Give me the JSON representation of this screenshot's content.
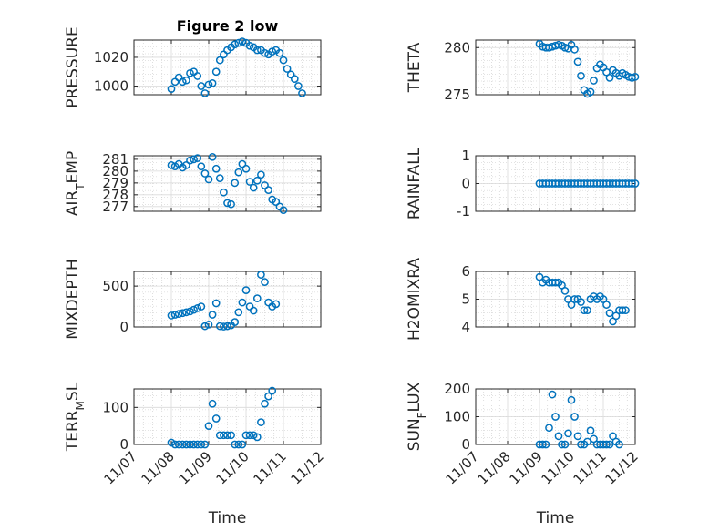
{
  "figure": {
    "title": "Figure 2 low",
    "xlabel": "Time"
  },
  "x_ticks": [
    "11/07",
    "11/08",
    "11/09",
    "11/10",
    "11/11",
    "11/12"
  ],
  "marker_color": "#0072BD",
  "chart_data": [
    {
      "type": "scatter",
      "title": "Figure 2 low",
      "ylabel": "PRESSURE",
      "ylim": [
        994,
        1032
      ],
      "yticks": [
        1000,
        1020
      ],
      "xlim": [
        0,
        5
      ],
      "x": [
        0.0,
        0.1,
        0.2,
        0.3,
        0.4,
        0.5,
        0.6,
        0.7,
        0.8,
        0.9,
        1.0,
        1.1,
        1.2,
        1.3,
        1.4,
        1.5,
        1.6,
        1.7,
        1.8,
        1.9,
        2.0,
        2.1,
        2.2,
        2.3,
        2.4,
        2.5,
        2.6,
        2.7,
        2.8,
        2.9,
        3.0,
        3.1,
        3.2,
        3.3,
        3.4,
        3.5,
        3.6,
        3.7,
        3.8,
        3.9,
        4.0,
        4.1,
        4.2,
        4.3,
        4.4,
        4.5,
        4.6,
        4.7,
        4.8,
        4.9,
        5.0
      ],
      "y": [
        null,
        null,
        null,
        null,
        null,
        null,
        null,
        null,
        null,
        null,
        998,
        1003,
        1006,
        1003,
        1004,
        1009,
        1010,
        1007,
        1000,
        995,
        1001,
        1002,
        1010,
        1018,
        1022,
        1025,
        1027,
        1029,
        1030,
        1031,
        1030,
        1028,
        1027,
        1025,
        1025,
        1023,
        1022,
        1024,
        1025,
        1023,
        1018,
        1012,
        1008,
        1005,
        1000,
        995,
        null,
        null,
        null,
        null,
        null
      ]
    },
    {
      "type": "scatter",
      "ylabel": "THETA",
      "ylim": [
        275,
        280.8
      ],
      "yticks": [
        275,
        280
      ],
      "xlim": [
        0,
        5
      ],
      "x": [
        0.0,
        0.1,
        0.2,
        0.3,
        0.4,
        0.5,
        0.6,
        0.7,
        0.8,
        0.9,
        1.0,
        1.1,
        1.2,
        1.3,
        1.4,
        1.5,
        1.6,
        1.7,
        1.8,
        1.9,
        2.0,
        2.1,
        2.2,
        2.3,
        2.4,
        2.5,
        2.6,
        2.7,
        2.8,
        2.9,
        3.0,
        3.1,
        3.2,
        3.3,
        3.4,
        3.5,
        3.6,
        3.7,
        3.8,
        3.9,
        4.0,
        4.1,
        4.2,
        4.3,
        4.4,
        4.5,
        4.6,
        4.7,
        4.8,
        4.9,
        5.0
      ],
      "y": [
        null,
        null,
        null,
        null,
        null,
        null,
        null,
        null,
        null,
        null,
        null,
        null,
        null,
        null,
        null,
        null,
        null,
        null,
        null,
        null,
        280.4,
        280.1,
        280.0,
        280.0,
        280.1,
        280.2,
        280.3,
        280.2,
        280.0,
        279.9,
        280.3,
        279.8,
        278.5,
        277.0,
        275.5,
        275.1,
        275.3,
        276.5,
        277.8,
        278.2,
        277.9,
        277.4,
        276.8,
        277.6,
        277.3,
        277.0,
        277.3,
        277.1,
        276.9,
        276.8,
        276.9
      ]
    },
    {
      "type": "scatter",
      "ylabel": "AIR_T_EMP",
      "ylim": [
        276.6,
        281.3
      ],
      "yticks": [
        277,
        278,
        279,
        280,
        281
      ],
      "xlim": [
        0,
        5
      ],
      "x": [
        0.0,
        0.1,
        0.2,
        0.3,
        0.4,
        0.5,
        0.6,
        0.7,
        0.8,
        0.9,
        1.0,
        1.1,
        1.2,
        1.3,
        1.4,
        1.5,
        1.6,
        1.7,
        1.8,
        1.9,
        2.0,
        2.1,
        2.2,
        2.3,
        2.4,
        2.5,
        2.6,
        2.7,
        2.8,
        2.9,
        3.0,
        3.1,
        3.2,
        3.3,
        3.4,
        3.5,
        3.6,
        3.7,
        3.8,
        3.9,
        4.0,
        4.1,
        4.2,
        4.3,
        4.4,
        4.5,
        4.6,
        4.7,
        4.8,
        4.9,
        5.0
      ],
      "y": [
        null,
        null,
        null,
        null,
        null,
        null,
        null,
        null,
        null,
        null,
        280.5,
        280.4,
        280.6,
        280.3,
        280.5,
        280.9,
        281.0,
        281.1,
        280.4,
        279.8,
        279.3,
        281.2,
        280.2,
        279.4,
        278.2,
        277.3,
        277.2,
        279.0,
        279.9,
        280.6,
        280.2,
        279.1,
        278.6,
        279.2,
        279.7,
        278.8,
        278.4,
        277.6,
        277.4,
        277.0,
        276.7,
        null,
        null,
        null,
        null,
        null,
        null,
        null,
        null,
        null,
        null
      ]
    },
    {
      "type": "scatter",
      "ylabel": "RAINFALL",
      "ylim": [
        -1,
        1
      ],
      "yticks": [
        -1,
        0,
        1
      ],
      "xlim": [
        0,
        5
      ],
      "x": [
        2.0,
        2.1,
        2.2,
        2.3,
        2.4,
        2.5,
        2.6,
        2.7,
        2.8,
        2.9,
        3.0,
        3.1,
        3.2,
        3.3,
        3.4,
        3.5,
        3.6,
        3.7,
        3.8,
        3.9,
        4.0,
        4.1,
        4.2,
        4.3,
        4.4,
        4.5,
        4.6,
        4.7,
        4.8,
        4.9,
        5.0
      ],
      "y": [
        0,
        0,
        0,
        0,
        0,
        0,
        0,
        0,
        0,
        0,
        0,
        0,
        0,
        0,
        0,
        0,
        0,
        0,
        0,
        0,
        0,
        0,
        0,
        0,
        0,
        0,
        0,
        0,
        0,
        0,
        0
      ]
    },
    {
      "type": "scatter",
      "ylabel": "MIXDEPTH",
      "ylim": [
        0,
        680
      ],
      "yticks": [
        0,
        500
      ],
      "xlim": [
        0,
        5
      ],
      "x": [
        0.0,
        0.1,
        0.2,
        0.3,
        0.4,
        0.5,
        0.6,
        0.7,
        0.8,
        0.9,
        1.0,
        1.1,
        1.2,
        1.3,
        1.4,
        1.5,
        1.6,
        1.7,
        1.8,
        1.9,
        2.0,
        2.1,
        2.2,
        2.3,
        2.4,
        2.5,
        2.6,
        2.7,
        2.8,
        2.9,
        3.0,
        3.1,
        3.2,
        3.3,
        3.4,
        3.5,
        3.6,
        3.7,
        3.8,
        3.9,
        4.0,
        4.1,
        4.2,
        4.3,
        4.4,
        4.5,
        4.6,
        4.7,
        4.8,
        4.9,
        5.0
      ],
      "y": [
        null,
        null,
        null,
        null,
        null,
        null,
        null,
        null,
        null,
        null,
        140,
        150,
        160,
        170,
        180,
        190,
        210,
        230,
        250,
        10,
        30,
        150,
        290,
        10,
        5,
        10,
        20,
        60,
        180,
        300,
        450,
        250,
        200,
        350,
        640,
        550,
        300,
        250,
        280,
        null,
        null,
        null,
        null,
        null,
        null,
        null,
        null,
        null,
        null,
        null,
        null
      ]
    },
    {
      "type": "scatter",
      "ylabel": "H2OMIXRA",
      "ylim": [
        4,
        6
      ],
      "yticks": [
        4,
        5,
        6
      ],
      "xlim": [
        0,
        5
      ],
      "x": [
        0.0,
        0.1,
        0.2,
        0.3,
        0.4,
        0.5,
        0.6,
        0.7,
        0.8,
        0.9,
        1.0,
        1.1,
        1.2,
        1.3,
        1.4,
        1.5,
        1.6,
        1.7,
        1.8,
        1.9,
        2.0,
        2.1,
        2.2,
        2.3,
        2.4,
        2.5,
        2.6,
        2.7,
        2.8,
        2.9,
        3.0,
        3.1,
        3.2,
        3.3,
        3.4,
        3.5,
        3.6,
        3.7,
        3.8,
        3.9,
        4.0,
        4.1,
        4.2,
        4.3,
        4.4,
        4.5,
        4.6,
        4.7,
        4.8,
        4.9,
        5.0
      ],
      "y": [
        null,
        null,
        null,
        null,
        null,
        null,
        null,
        null,
        null,
        null,
        null,
        null,
        null,
        null,
        null,
        null,
        null,
        null,
        null,
        null,
        5.8,
        5.6,
        5.7,
        5.6,
        5.6,
        5.6,
        5.6,
        5.5,
        5.3,
        5.0,
        4.8,
        5.0,
        5.0,
        4.9,
        4.6,
        4.6,
        5.0,
        5.1,
        5.0,
        5.1,
        5.0,
        4.8,
        4.5,
        4.2,
        4.4,
        4.6,
        4.6,
        4.6,
        null,
        null,
        null
      ]
    },
    {
      "type": "scatter",
      "ylabel": "TERR_M_SL",
      "ylim": [
        0,
        150
      ],
      "yticks": [
        0,
        100
      ],
      "xlim": [
        0,
        5
      ],
      "x": [
        0.0,
        0.1,
        0.2,
        0.3,
        0.4,
        0.5,
        0.6,
        0.7,
        0.8,
        0.9,
        1.0,
        1.1,
        1.2,
        1.3,
        1.4,
        1.5,
        1.6,
        1.7,
        1.8,
        1.9,
        2.0,
        2.1,
        2.2,
        2.3,
        2.4,
        2.5,
        2.6,
        2.7,
        2.8,
        2.9,
        3.0,
        3.1,
        3.2,
        3.3,
        3.4,
        3.5,
        3.6,
        3.7,
        3.8,
        3.9,
        4.0,
        4.1,
        4.2,
        4.3,
        4.4,
        4.5,
        4.6,
        4.7,
        4.8,
        4.9,
        5.0
      ],
      "y": [
        null,
        null,
        null,
        null,
        null,
        null,
        null,
        null,
        null,
        null,
        5,
        0,
        0,
        0,
        0,
        0,
        0,
        0,
        0,
        0,
        50,
        110,
        70,
        25,
        25,
        25,
        25,
        0,
        0,
        0,
        25,
        25,
        25,
        20,
        60,
        110,
        130,
        145,
        null,
        null,
        null,
        null,
        null,
        null,
        null,
        null,
        null,
        null,
        null,
        null,
        null
      ]
    },
    {
      "type": "scatter",
      "ylabel": "SUN_F_LUX",
      "ylim": [
        0,
        200
      ],
      "yticks": [
        0,
        100,
        200
      ],
      "xlim": [
        0,
        5
      ],
      "x": [
        0.0,
        0.1,
        0.2,
        0.3,
        0.4,
        0.5,
        0.6,
        0.7,
        0.8,
        0.9,
        1.0,
        1.1,
        1.2,
        1.3,
        1.4,
        1.5,
        1.6,
        1.7,
        1.8,
        1.9,
        2.0,
        2.1,
        2.2,
        2.3,
        2.4,
        2.5,
        2.6,
        2.7,
        2.8,
        2.9,
        3.0,
        3.1,
        3.2,
        3.3,
        3.4,
        3.5,
        3.6,
        3.7,
        3.8,
        3.9,
        4.0,
        4.1,
        4.2,
        4.3,
        4.4,
        4.5,
        4.6,
        4.7,
        4.8,
        4.9,
        5.0
      ],
      "y": [
        null,
        null,
        null,
        null,
        null,
        null,
        null,
        null,
        null,
        null,
        null,
        null,
        null,
        null,
        null,
        null,
        null,
        null,
        null,
        null,
        0,
        0,
        0,
        60,
        180,
        100,
        30,
        0,
        0,
        40,
        160,
        100,
        30,
        0,
        0,
        10,
        50,
        20,
        0,
        0,
        0,
        0,
        0,
        30,
        10,
        0,
        null,
        null,
        null,
        null,
        null
      ]
    }
  ]
}
